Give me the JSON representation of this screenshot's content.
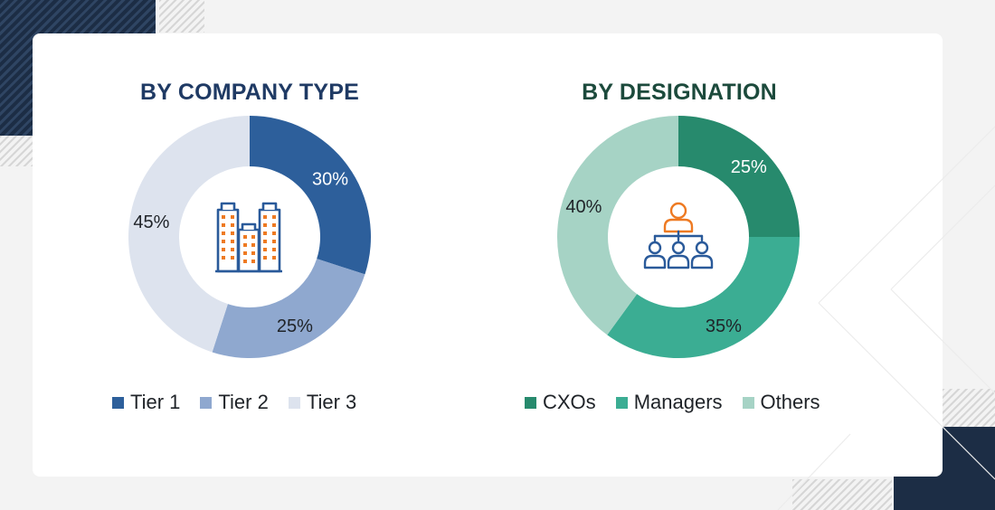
{
  "chart_data": [
    {
      "type": "pie",
      "style": "donut",
      "title": "BY COMPANY TYPE",
      "categories": [
        "Tier 1",
        "Tier 2",
        "Tier 3"
      ],
      "values": [
        30,
        25,
        45
      ],
      "labels": [
        "30%",
        "25%",
        "45%"
      ],
      "colors": [
        "#2d5f9b",
        "#8fa8cf",
        "#dde3ee"
      ],
      "label_colors": [
        "#ffffff",
        "#1f2328",
        "#1f2328"
      ],
      "legend": "bottom",
      "center_icon": "buildings-icon"
    },
    {
      "type": "pie",
      "style": "donut",
      "title": "BY DESIGNATION",
      "categories": [
        "CXOs",
        "Managers",
        "Others"
      ],
      "values": [
        25,
        35,
        40
      ],
      "labels": [
        "25%",
        "35%",
        "40%"
      ],
      "colors": [
        "#278a6d",
        "#3bad93",
        "#a6d3c5"
      ],
      "label_colors": [
        "#ffffff",
        "#1f2328",
        "#1f2328"
      ],
      "legend": "bottom",
      "center_icon": "org-hierarchy-icon"
    }
  ],
  "theme": {
    "icon_blue": "#2a5a9a",
    "icon_orange": "#ee7a22"
  }
}
